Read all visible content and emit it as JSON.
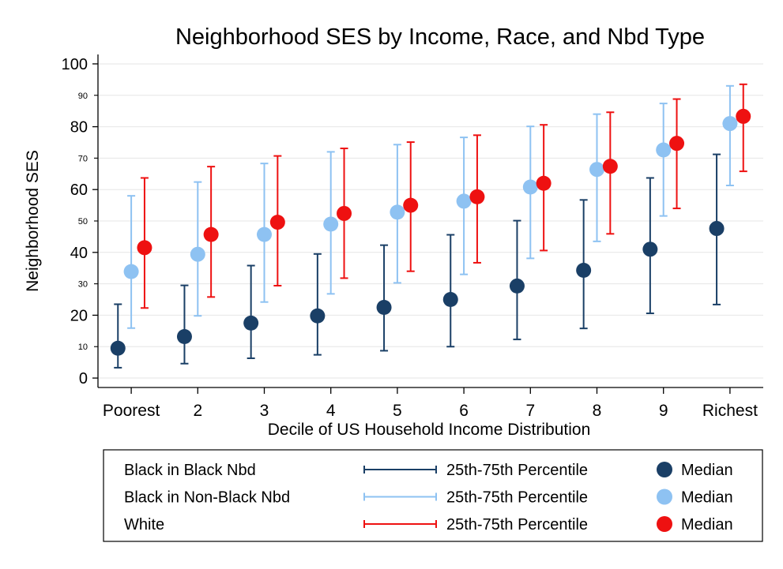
{
  "chart_data": {
    "type": "scatter",
    "title": "Neighborhood SES by Income, Race, and Nbd Type",
    "xlabel": "Decile of US Household Income Distribution",
    "ylabel": "Neighborhood SES",
    "categories": [
      "Poorest",
      "2",
      "3",
      "4",
      "5",
      "6",
      "7",
      "8",
      "9",
      "Richest"
    ],
    "ylim": [
      -3,
      103
    ],
    "y_major_ticks": [
      "0",
      "20",
      "40",
      "60",
      "80",
      "100"
    ],
    "y_minor_ticks": [
      "10",
      "30",
      "50",
      "70",
      "90"
    ],
    "grid": true,
    "legend_position": "bottom",
    "series": [
      {
        "name": "Black in Black Nbd",
        "range_label": "25th-75th Percentile",
        "median_label": "Median",
        "color": "#1a3f66",
        "median": [
          9.5,
          13.2,
          17.5,
          19.8,
          22.5,
          25.0,
          29.3,
          34.3,
          41.0,
          47.6
        ],
        "p25": [
          3.3,
          4.6,
          6.3,
          7.4,
          8.7,
          10.0,
          12.3,
          15.8,
          20.6,
          23.4
        ],
        "p75": [
          23.5,
          29.5,
          35.8,
          39.5,
          42.3,
          45.6,
          50.1,
          56.7,
          63.7,
          71.2
        ]
      },
      {
        "name": "Black in Non-Black Nbd",
        "range_label": "25th-75th Percentile",
        "median_label": "Median",
        "color": "#8ec2f2",
        "median": [
          33.9,
          39.4,
          45.7,
          49.0,
          52.8,
          56.3,
          60.8,
          66.4,
          72.6,
          81.0
        ],
        "p25": [
          15.9,
          19.8,
          24.2,
          26.8,
          30.3,
          33.0,
          38.1,
          43.5,
          51.6,
          61.3
        ],
        "p75": [
          58.0,
          62.4,
          68.3,
          72.0,
          74.3,
          76.6,
          80.1,
          84.0,
          87.4,
          93.0
        ]
      },
      {
        "name": "White",
        "range_label": "25th-75th Percentile",
        "median_label": "Median",
        "color": "#ee1111",
        "median": [
          41.5,
          45.7,
          49.6,
          52.4,
          55.0,
          57.7,
          62.0,
          67.4,
          74.7,
          83.3
        ],
        "p25": [
          22.3,
          25.8,
          29.4,
          31.8,
          34.0,
          36.7,
          40.6,
          45.9,
          54.0,
          65.8
        ],
        "p75": [
          63.7,
          67.3,
          70.7,
          73.1,
          75.1,
          77.3,
          80.6,
          84.6,
          88.8,
          93.5
        ]
      }
    ]
  }
}
